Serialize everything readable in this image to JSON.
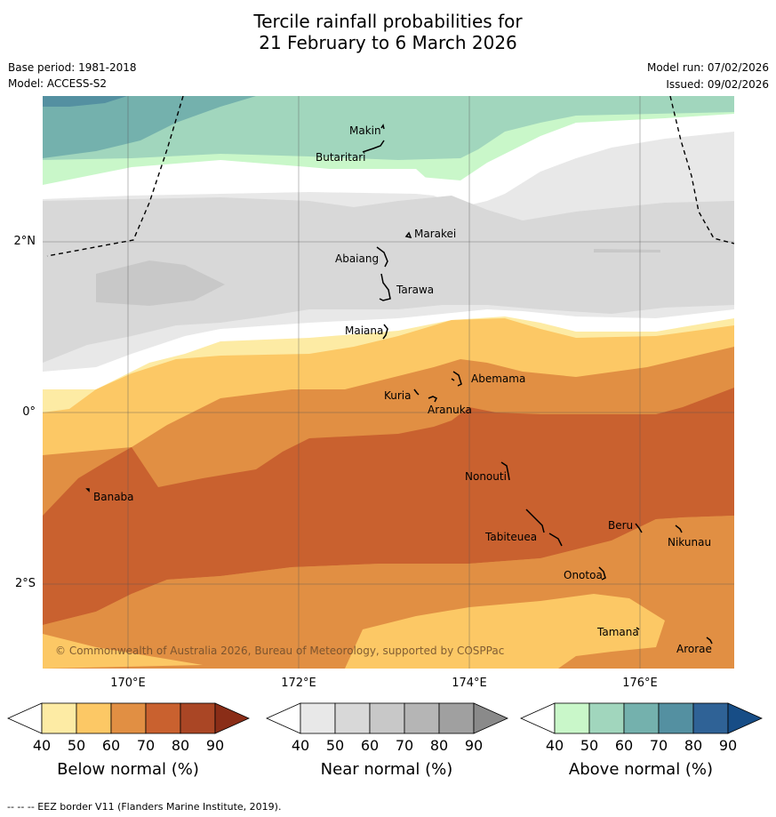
{
  "header": {
    "title_line1": "Tercile rainfall probabilities for",
    "title_line2": "21 February to 6 March 2026",
    "base_period": "Base period: 1981-2018",
    "model": "Model: ACCESS-S2",
    "model_run": "Model run: 07/02/2026",
    "issued": "Issued: 09/02/2026"
  },
  "map": {
    "copyright": "© Commonwealth of Australia 2026, Bureau of Meteorology, supported by COSPPac",
    "lon_labels": [
      "170°E",
      "172°E",
      "174°E",
      "176°E"
    ],
    "lat_labels": [
      "2°N",
      "0°",
      "2°S"
    ],
    "islands": [
      "Makin",
      "Butaritari",
      "Marakei",
      "Abaiang",
      "Tarawa",
      "Maiana",
      "Abemama",
      "Kuria",
      "Aranuka",
      "Nonouti",
      "Banaba",
      "Tabiteuea",
      "Beru",
      "Nikunau",
      "Onotoa",
      "Tamana",
      "Arorae"
    ]
  },
  "legend": {
    "tick_labels": [
      "40",
      "50",
      "60",
      "70",
      "80",
      "90"
    ],
    "below": {
      "title": "Below normal (%)",
      "colors": [
        "#ffffff",
        "#fdeba4",
        "#fcc865",
        "#e18f43",
        "#c9612f",
        "#aa4625",
        "#8a2d17"
      ]
    },
    "near": {
      "title": "Near normal (%)",
      "colors": [
        "#ffffff",
        "#e8e8e8",
        "#d8d8d8",
        "#c8c8c8",
        "#b5b5b5",
        "#a0a0a0",
        "#8a8a8a"
      ]
    },
    "above": {
      "title": "Above normal (%)",
      "colors": [
        "#ffffff",
        "#c9f7c9",
        "#a1d6bd",
        "#74b1ad",
        "#5490a1",
        "#2f6296",
        "#174d86"
      ]
    }
  },
  "footnote": "--  --  -- EEZ border V11 (Flanders Marine Institute, 2019)."
}
